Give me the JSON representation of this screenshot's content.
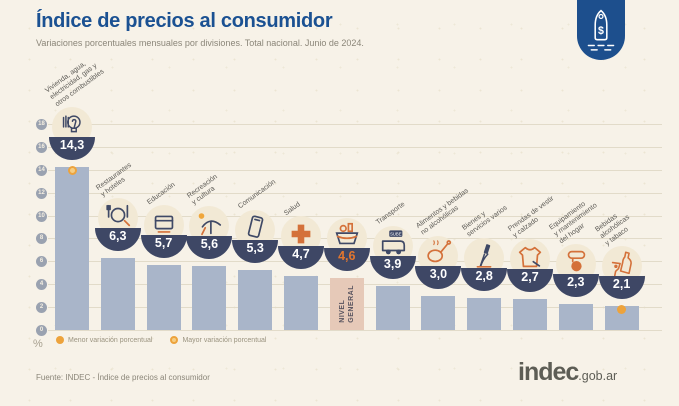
{
  "header": {
    "title": "Índice de precios al consumidor",
    "subtitle": "Variaciones porcentuales mensuales por divisiones. Total nacional. Junio de 2024."
  },
  "badge": {
    "icon": "price-tag",
    "symbol": "$"
  },
  "chart_data": {
    "type": "bar",
    "title": "Índice de precios al consumidor",
    "subtitle": "Variaciones porcentuales mensuales por divisiones. Total nacional. Junio de 2024.",
    "unit": "%",
    "ylim": [
      0,
      18
    ],
    "yticks": [
      0,
      2,
      4,
      6,
      8,
      10,
      12,
      14,
      16,
      18
    ],
    "grid": true,
    "legend_position": "bottom-left",
    "categories": [
      "Vivienda, agua, electricidad, gas y otros combustibles",
      "Restaurantes y hoteles",
      "Educación",
      "Recreación y cultura",
      "Comunicación",
      "Salud",
      "Nivel general",
      "Transporte",
      "Alimentos y bebidas no alcohólicas",
      "Bienes y servicios varios",
      "Prendas de vestir y calzado",
      "Equipamiento y mantenimiento del hogar",
      "Bebidas alcohólicas y tabaco"
    ],
    "values": [
      14.3,
      6.3,
      5.7,
      5.6,
      5.3,
      4.7,
      4.6,
      3.9,
      3.0,
      2.8,
      2.7,
      2.3,
      2.1
    ],
    "bars": [
      {
        "category": "Vivienda, agua, electricidad, gas y otros combustibles",
        "label_lines": [
          "Vivienda, agua,",
          "electricidad, gas y",
          "otros combustibles"
        ],
        "value": 14.3,
        "display": "14,3",
        "icon": "lightbulb",
        "marker": "max"
      },
      {
        "category": "Restaurantes y hoteles",
        "label_lines": [
          "Restaurantes",
          "y hoteles"
        ],
        "value": 6.3,
        "display": "6,3",
        "icon": "cutlery"
      },
      {
        "category": "Educación",
        "label_lines": [
          "Educación"
        ],
        "value": 5.7,
        "display": "5,7",
        "icon": "book"
      },
      {
        "category": "Recreación y cultura",
        "label_lines": [
          "Recreación",
          "y cultura"
        ],
        "value": 5.6,
        "display": "5,6",
        "icon": "umbrella"
      },
      {
        "category": "Comunicación",
        "label_lines": [
          "Comunicación"
        ],
        "value": 5.3,
        "display": "5,3",
        "icon": "smartphone"
      },
      {
        "category": "Salud",
        "label_lines": [
          "Salud"
        ],
        "value": 4.7,
        "display": "4,7",
        "icon": "medical-cross"
      },
      {
        "category": "Nivel general",
        "label_lines": [],
        "bar_text": "NIVEL GENERAL",
        "value": 4.6,
        "display": "4,6",
        "icon": "shopping-basket",
        "highlight": true
      },
      {
        "category": "Transporte",
        "label_lines": [
          "Transporte"
        ],
        "value": 3.9,
        "display": "3,9",
        "icon": "bus",
        "icon_label": "SUBE"
      },
      {
        "category": "Alimentos y bebidas no alcohólicas",
        "label_lines": [
          "Alimentos y bebidas",
          "no alcohólicas"
        ],
        "value": 3.0,
        "display": "3,0",
        "icon": "chicken"
      },
      {
        "category": "Bienes y servicios varios",
        "label_lines": [
          "Bienes y",
          "servicios varios"
        ],
        "value": 2.8,
        "display": "2,8",
        "icon": "razor"
      },
      {
        "category": "Prendas de vestir y calzado",
        "label_lines": [
          "Prendas de vestir",
          "y calzado"
        ],
        "value": 2.7,
        "display": "2,7",
        "icon": "tshirt"
      },
      {
        "category": "Equipamiento y mantenimiento del hogar",
        "label_lines": [
          "Equipamiento",
          "y mantenimiento",
          "del hogar"
        ],
        "value": 2.3,
        "display": "2,3",
        "icon": "mixer"
      },
      {
        "category": "Bebidas alcohólicas y tabaco",
        "label_lines": [
          "Bebidas",
          "alcohólicas",
          "y tabaco"
        ],
        "value": 2.1,
        "display": "2,1",
        "icon": "bottle-glass",
        "marker": "min"
      }
    ],
    "legend": [
      {
        "label": "Menor variación porcentual",
        "marker": "min"
      },
      {
        "label": "Mayor variación porcentual",
        "marker": "max"
      }
    ],
    "colors": {
      "background": "#f7f2e8",
      "bar": "#a9b5c9",
      "highlight_bar": "#e6c9b8",
      "bowl": "#3e4765",
      "value_text": "#ffffff",
      "highlight_value_text": "#e2762e",
      "marker_orange": "#eda33c",
      "title_blue": "#1b5192"
    }
  },
  "footer": {
    "source": "Fuente: INDEC - Índice de precios al consumidor",
    "logo_text": "indec",
    "logo_suffix": ".gob.ar"
  }
}
